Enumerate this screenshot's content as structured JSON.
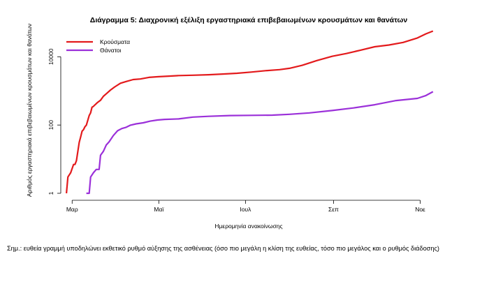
{
  "chart_data": {
    "type": "line",
    "title": "Διάγραμμα 5: Διαχρονική εξέλιξη εργαστηριακά επιβεβαιωμένων κρουσμάτων και θανάτων",
    "xlabel": "Ημερομηνία ανακοίνωσης",
    "ylabel": "Αριθμός εργαστηριακά επιβεβαιωμένων κρουσμάτων και θανάτων",
    "y_scale": "log",
    "ylim": [
      1,
      70000
    ],
    "xlim": [
      "2020-02-22",
      "2020-11-15"
    ],
    "x_ticks": [
      {
        "date": "2020-03-01",
        "label": "Μαρ"
      },
      {
        "date": "2020-05-01",
        "label": "Μαϊ"
      },
      {
        "date": "2020-07-01",
        "label": "Ιουλ"
      },
      {
        "date": "2020-09-01",
        "label": "Σεπ"
      },
      {
        "date": "2020-11-01",
        "label": "Νοε"
      }
    ],
    "y_ticks": [
      {
        "value": 1,
        "label": "1"
      },
      {
        "value": 100,
        "label": "100"
      },
      {
        "value": 10000,
        "label": "10000"
      }
    ],
    "grid": false,
    "legend_position": "top-left",
    "series": [
      {
        "name": "Κρούσματα",
        "color": "#e31a1c",
        "points": [
          [
            "2020-02-26",
            1
          ],
          [
            "2020-02-27",
            3
          ],
          [
            "2020-02-29",
            4
          ],
          [
            "2020-03-02",
            7
          ],
          [
            "2020-03-03",
            7
          ],
          [
            "2020-03-04",
            9
          ],
          [
            "2020-03-06",
            31
          ],
          [
            "2020-03-07",
            45
          ],
          [
            "2020-03-08",
            66
          ],
          [
            "2020-03-09",
            73
          ],
          [
            "2020-03-10",
            89
          ],
          [
            "2020-03-11",
            99
          ],
          [
            "2020-03-13",
            190
          ],
          [
            "2020-03-14",
            228
          ],
          [
            "2020-03-15",
            331
          ],
          [
            "2020-03-16",
            352
          ],
          [
            "2020-03-17",
            387
          ],
          [
            "2020-03-19",
            464
          ],
          [
            "2020-03-21",
            530
          ],
          [
            "2020-03-23",
            695
          ],
          [
            "2020-03-25",
            821
          ],
          [
            "2020-03-28",
            1061
          ],
          [
            "2020-03-31",
            1314
          ],
          [
            "2020-04-04",
            1673
          ],
          [
            "2020-04-08",
            1884
          ],
          [
            "2020-04-13",
            2145
          ],
          [
            "2020-04-18",
            2235
          ],
          [
            "2020-04-24",
            2490
          ],
          [
            "2020-04-30",
            2591
          ],
          [
            "2020-05-01",
            2612
          ],
          [
            "2020-05-08",
            2710
          ],
          [
            "2020-05-15",
            2810
          ],
          [
            "2020-05-25",
            2878
          ],
          [
            "2020-06-05",
            2980
          ],
          [
            "2020-06-15",
            3121
          ],
          [
            "2020-06-25",
            3287
          ],
          [
            "2020-07-05",
            3562
          ],
          [
            "2020-07-15",
            3910
          ],
          [
            "2020-07-25",
            4193
          ],
          [
            "2020-08-01",
            4587
          ],
          [
            "2020-08-10",
            5623
          ],
          [
            "2020-08-20",
            7684
          ],
          [
            "2020-08-31",
            10317
          ],
          [
            "2020-09-10",
            12452
          ],
          [
            "2020-09-20",
            15595
          ],
          [
            "2020-09-30",
            19613
          ],
          [
            "2020-10-10",
            22109
          ],
          [
            "2020-10-20",
            26302
          ],
          [
            "2020-10-30",
            35510
          ],
          [
            "2020-11-05",
            46892
          ],
          [
            "2020-11-10",
            56698
          ]
        ]
      },
      {
        "name": "Θάνατοι",
        "color": "#9b30d9",
        "points": [
          [
            "2020-03-11",
            1
          ],
          [
            "2020-03-13",
            1
          ],
          [
            "2020-03-14",
            3
          ],
          [
            "2020-03-16",
            4
          ],
          [
            "2020-03-18",
            5
          ],
          [
            "2020-03-20",
            5
          ],
          [
            "2020-03-21",
            13
          ],
          [
            "2020-03-23",
            17
          ],
          [
            "2020-03-25",
            26
          ],
          [
            "2020-03-27",
            32
          ],
          [
            "2020-03-30",
            49
          ],
          [
            "2020-04-02",
            68
          ],
          [
            "2020-04-05",
            79
          ],
          [
            "2020-04-08",
            86
          ],
          [
            "2020-04-11",
            99
          ],
          [
            "2020-04-15",
            108
          ],
          [
            "2020-04-20",
            116
          ],
          [
            "2020-04-25",
            130
          ],
          [
            "2020-04-30",
            140
          ],
          [
            "2020-05-05",
            146
          ],
          [
            "2020-05-15",
            151
          ],
          [
            "2020-05-25",
            171
          ],
          [
            "2020-06-05",
            180
          ],
          [
            "2020-06-20",
            189
          ],
          [
            "2020-07-05",
            192
          ],
          [
            "2020-07-20",
            195
          ],
          [
            "2020-08-01",
            206
          ],
          [
            "2020-08-15",
            226
          ],
          [
            "2020-08-31",
            266
          ],
          [
            "2020-09-15",
            317
          ],
          [
            "2020-09-30",
            393
          ],
          [
            "2020-10-15",
            520
          ],
          [
            "2020-10-30",
            603
          ],
          [
            "2020-11-05",
            733
          ],
          [
            "2020-11-10",
            946
          ]
        ]
      }
    ]
  },
  "footnote": "Σημ.: ευθεία γραμμή υποδηλώνει εκθετικό ρυθμό αύξησης της ασθένειας (όσο πιο μεγάλη η κλίση της ευθείας, τόσο πιο μεγάλος και ο ρυθμός διάδοσης)"
}
